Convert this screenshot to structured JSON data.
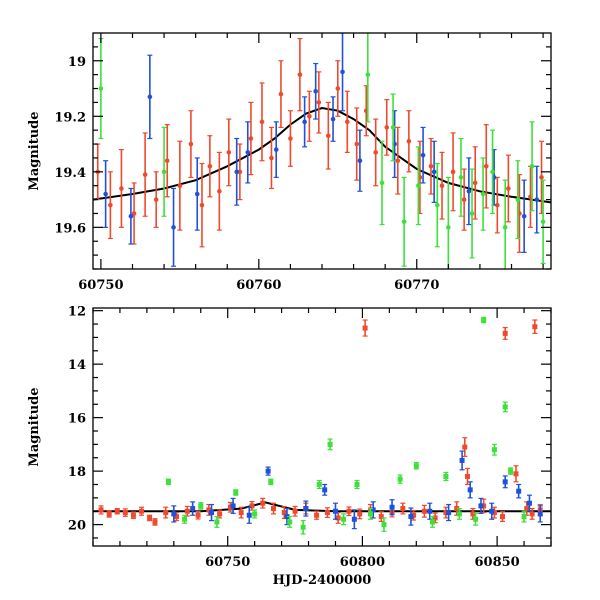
{
  "colors": {
    "red": "#f04a2c",
    "blue": "#1f52d9",
    "green": "#3ee03a",
    "model": "#000000",
    "axis": "#000000"
  },
  "chart_data": [
    {
      "type": "scatter",
      "panel": "top",
      "title": "",
      "xlabel": "",
      "ylabel": "Magnitude",
      "xlim": [
        60749.5,
        60778.5
      ],
      "ylim": [
        19.75,
        18.9
      ],
      "inverted_y": true,
      "x_ticks": [
        60750,
        60760,
        60770
      ],
      "y_ticks": [
        19,
        19.2,
        19.4,
        19.6
      ],
      "grid": false,
      "legend": "none",
      "model_curve": {
        "color": "model",
        "x": [
          60749.5,
          60752,
          60754,
          60756,
          60758,
          60760,
          60761,
          60762,
          60763,
          60764,
          60765,
          60766,
          60767,
          60768,
          60770,
          60772,
          60774,
          60776,
          60778.5
        ],
        "y": [
          19.5,
          19.48,
          19.46,
          19.43,
          19.38,
          19.32,
          19.28,
          19.23,
          19.19,
          19.17,
          19.18,
          19.21,
          19.25,
          19.31,
          19.39,
          19.44,
          19.47,
          19.49,
          19.51
        ]
      },
      "series": [
        {
          "color": "red",
          "x": [
            60749.8,
            60750.6,
            60751.3,
            60752.1,
            60752.8,
            60753.5,
            60754.2,
            60755.0,
            60755.7,
            60756.4,
            60756.9,
            60757.5,
            60758.1,
            60758.8,
            60759.5,
            60760.2,
            60760.8,
            60761.4,
            60762.0,
            60762.6,
            60763.2,
            60763.8,
            60764.4,
            60765.0,
            60765.6,
            60766.2,
            60766.8,
            60767.4,
            60768.1,
            60768.8,
            60769.5,
            60770.2,
            60770.9,
            60771.6,
            60772.3,
            60773.0,
            60773.7,
            60774.4,
            60775.1,
            60775.8,
            60776.5,
            60777.2,
            60777.9
          ],
          "y": [
            19.4,
            19.52,
            19.46,
            19.55,
            19.41,
            19.5,
            19.36,
            19.45,
            19.3,
            19.52,
            19.38,
            19.47,
            19.33,
            19.4,
            19.28,
            19.22,
            19.35,
            19.12,
            19.28,
            19.05,
            19.2,
            19.15,
            19.27,
            19.1,
            19.22,
            19.3,
            19.18,
            19.33,
            19.24,
            19.36,
            19.29,
            19.42,
            19.38,
            19.45,
            19.4,
            19.5,
            19.44,
            19.38,
            19.52,
            19.46,
            19.55,
            19.49,
            19.42
          ],
          "err": [
            0.1,
            0.12,
            0.14,
            0.11,
            0.15,
            0.1,
            0.13,
            0.16,
            0.12,
            0.15,
            0.11,
            0.14,
            0.12,
            0.1,
            0.13,
            0.14,
            0.11,
            0.12,
            0.1,
            0.13,
            0.09,
            0.11,
            0.12,
            0.1,
            0.11,
            0.13,
            0.09,
            0.12,
            0.1,
            0.12,
            0.11,
            0.13,
            0.1,
            0.12,
            0.14,
            0.11,
            0.13,
            0.15,
            0.1,
            0.12,
            0.14,
            0.11,
            0.13
          ]
        },
        {
          "color": "blue",
          "x": [
            60750.3,
            60751.9,
            60753.1,
            60754.6,
            60756.1,
            60758.6,
            60759.3,
            60761.1,
            60762.9,
            60763.6,
            60764.7,
            60765.3,
            60766.4,
            60768.6,
            60770.4,
            60771.1,
            60773.3,
            60774.9,
            60776.8,
            60777.6
          ],
          "y": [
            19.48,
            19.56,
            19.13,
            19.6,
            19.48,
            19.4,
            19.33,
            19.32,
            19.22,
            19.11,
            19.21,
            19.04,
            19.36,
            19.3,
            19.34,
            19.4,
            19.47,
            19.42,
            19.56,
            19.5
          ],
          "err": [
            0.12,
            0.1,
            0.15,
            0.14,
            0.13,
            0.12,
            0.11,
            0.1,
            0.09,
            0.1,
            0.08,
            0.14,
            0.11,
            0.12,
            0.1,
            0.11,
            0.12,
            0.1,
            0.13,
            0.12
          ]
        },
        {
          "color": "green",
          "x": [
            60750.0,
            60754.0,
            60766.9,
            60767.8,
            60768.5,
            60769.2,
            60770.1,
            60771.3,
            60772.0,
            60772.8,
            60773.5,
            60774.2,
            60774.8,
            60775.6,
            60776.4,
            60777.3,
            60778.0
          ],
          "y": [
            19.1,
            19.4,
            19.05,
            19.44,
            19.24,
            19.58,
            19.45,
            19.52,
            19.6,
            19.42,
            19.55,
            19.48,
            19.4,
            19.6,
            19.5,
            19.38,
            19.58
          ],
          "err": [
            0.18,
            0.16,
            0.17,
            0.15,
            0.12,
            0.16,
            0.14,
            0.15,
            0.18,
            0.14,
            0.16,
            0.13,
            0.15,
            0.17,
            0.14,
            0.16,
            0.15
          ]
        }
      ]
    },
    {
      "type": "scatter",
      "panel": "bottom",
      "title": "",
      "xlabel": "HJD-2400000",
      "ylabel": "Magnitude",
      "xlim": [
        60700,
        60870
      ],
      "ylim": [
        20.8,
        11.9
      ],
      "inverted_y": true,
      "x_ticks": [
        60750,
        60800,
        60850
      ],
      "y_ticks": [
        12,
        14,
        16,
        18,
        20
      ],
      "grid": false,
      "legend": "none",
      "model_curve": {
        "color": "model",
        "x": [
          60700,
          60740,
          60755,
          60764,
          60775,
          60790,
          60870
        ],
        "y": [
          19.5,
          19.5,
          19.4,
          19.17,
          19.45,
          19.5,
          19.5
        ]
      },
      "series": [
        {
          "color": "red",
          "x": [
            60703,
            60706,
            60709,
            60712,
            60715,
            60718,
            60721,
            60723,
            60727,
            60731,
            60735,
            60739,
            60743,
            60747,
            60751,
            60755,
            60759,
            60763,
            60767,
            60771,
            60775,
            60779,
            60783,
            60787,
            60791,
            60795,
            60799,
            60801,
            60803,
            60807,
            60811,
            60815,
            60819,
            60823,
            60827,
            60831,
            60835,
            60838,
            60839,
            60841,
            60845,
            60849,
            60852,
            60853,
            60857,
            60861,
            60863,
            60864,
            60866
          ],
          "y": [
            19.45,
            19.6,
            19.5,
            19.55,
            19.65,
            19.5,
            19.75,
            19.9,
            19.55,
            19.7,
            19.5,
            19.65,
            19.45,
            19.6,
            19.35,
            19.55,
            19.3,
            19.2,
            19.4,
            19.55,
            19.5,
            19.4,
            19.65,
            19.55,
            19.75,
            19.5,
            19.6,
            12.65,
            19.45,
            19.7,
            19.55,
            19.4,
            19.65,
            19.5,
            19.75,
            19.55,
            19.4,
            17.1,
            18.2,
            19.6,
            19.3,
            19.55,
            19.7,
            12.85,
            18.1,
            19.4,
            19.6,
            12.6,
            19.45
          ],
          "err": [
            0.15,
            0.12,
            0.1,
            0.14,
            0.12,
            0.15,
            0.1,
            0.12,
            0.2,
            0.15,
            0.18,
            0.14,
            0.2,
            0.15,
            0.18,
            0.2,
            0.16,
            0.18,
            0.2,
            0.22,
            0.18,
            0.2,
            0.15,
            0.18,
            0.2,
            0.16,
            0.18,
            0.3,
            0.2,
            0.18,
            0.16,
            0.2,
            0.18,
            0.22,
            0.18,
            0.2,
            0.25,
            0.35,
            0.3,
            0.2,
            0.25,
            0.2,
            0.18,
            0.22,
            0.3,
            0.25,
            0.2,
            0.25,
            0.2
          ]
        },
        {
          "color": "blue",
          "x": [
            60730,
            60737,
            60744,
            60752,
            60758,
            60765,
            60772,
            60779,
            60786,
            60790,
            60797,
            60804,
            60811,
            60818,
            60825,
            60832,
            60837,
            60840,
            60844,
            60848,
            60853,
            60858,
            60862,
            60866
          ],
          "y": [
            19.6,
            19.4,
            19.55,
            19.3,
            19.65,
            18.0,
            19.7,
            19.4,
            18.7,
            19.5,
            19.8,
            19.45,
            19.35,
            19.7,
            19.5,
            19.55,
            17.6,
            18.7,
            19.3,
            19.5,
            18.4,
            18.75,
            19.2,
            19.6
          ],
          "err": [
            0.3,
            0.25,
            0.3,
            0.28,
            0.3,
            0.15,
            0.3,
            0.28,
            0.2,
            0.3,
            0.35,
            0.3,
            0.28,
            0.32,
            0.3,
            0.3,
            0.35,
            0.3,
            0.28,
            0.3,
            0.22,
            0.25,
            0.3,
            0.3
          ]
        },
        {
          "color": "green",
          "x": [
            60728,
            60734,
            60740,
            60746,
            60753,
            60760,
            60766,
            60773,
            60778,
            60784,
            60788,
            60793,
            60798,
            60803,
            60808,
            60814,
            60820,
            60826,
            60831,
            60836,
            60842,
            60845,
            60849,
            60853,
            60855,
            60860
          ],
          "y": [
            18.4,
            19.8,
            19.3,
            19.9,
            18.8,
            19.6,
            18.4,
            19.9,
            20.1,
            18.5,
            17.0,
            19.8,
            18.5,
            19.6,
            20.0,
            18.3,
            17.8,
            19.9,
            18.2,
            19.6,
            19.8,
            12.35,
            17.2,
            15.6,
            18.0,
            19.7
          ],
          "err": [
            0.1,
            0.15,
            0.12,
            0.2,
            0.1,
            0.15,
            0.1,
            0.2,
            0.25,
            0.15,
            0.2,
            0.2,
            0.15,
            0.2,
            0.25,
            0.15,
            0.12,
            0.2,
            0.15,
            0.2,
            0.22,
            0.1,
            0.2,
            0.18,
            0.12,
            0.2
          ]
        }
      ]
    }
  ]
}
